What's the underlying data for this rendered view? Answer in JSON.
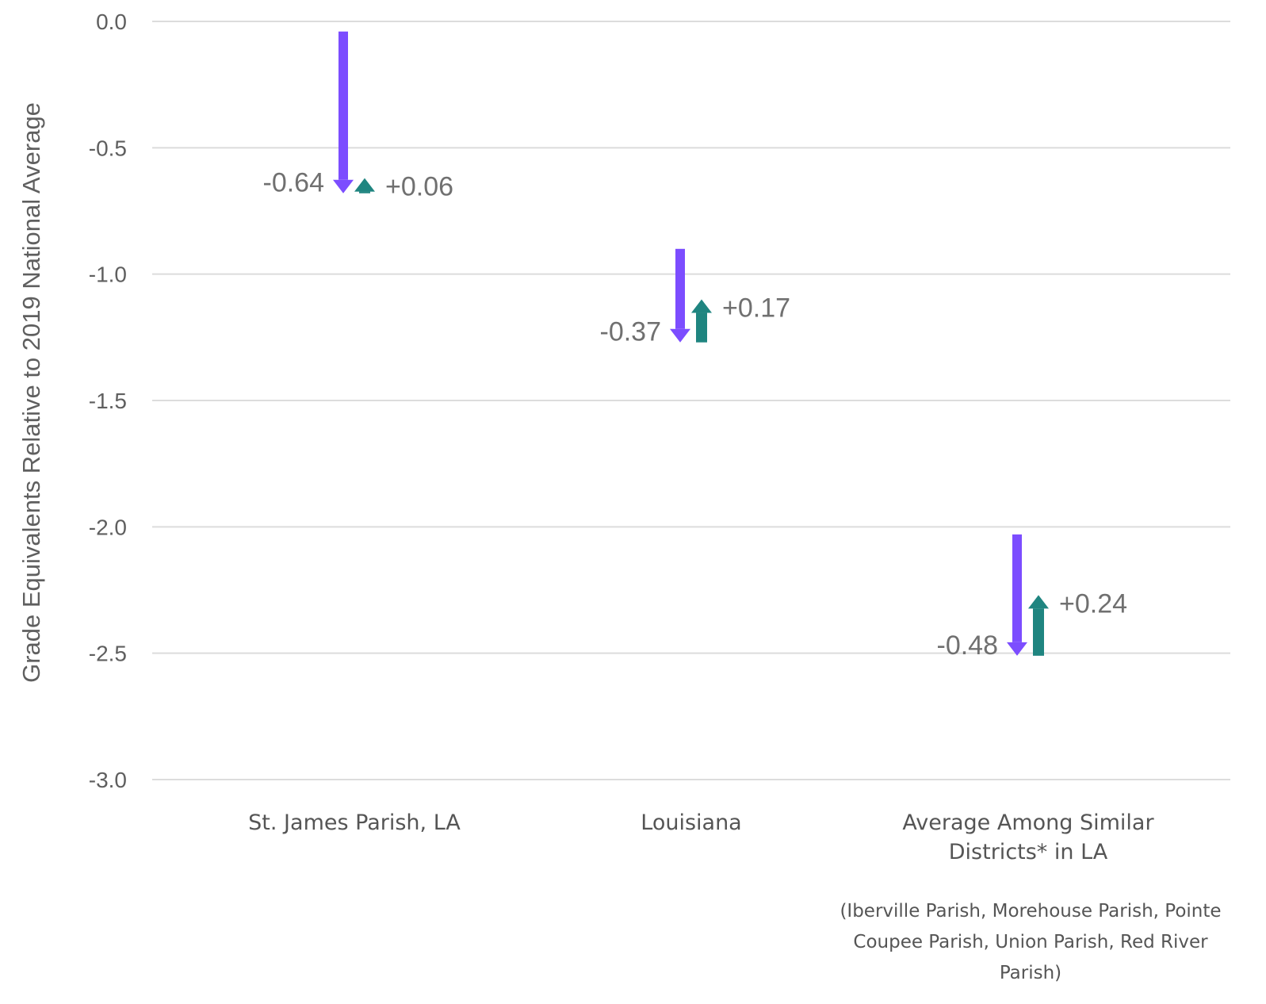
{
  "chart_data": {
    "type": "arrow",
    "ylabel": "Grade Equivalents Relative to 2019 National Average",
    "ylim": [
      -3.0,
      0.0
    ],
    "yticks": [
      "0.0",
      "-0.5",
      "-1.0",
      "-1.5",
      "-2.0",
      "-2.5",
      "-3.0"
    ],
    "grid": true,
    "colors": {
      "decline": "#7C4DFF",
      "recovery": "#1F8580"
    },
    "categories": [
      {
        "label_lines": [
          "St. James Parish, LA"
        ],
        "note_lines": [],
        "start": -0.04,
        "decline": -0.64,
        "decline_label": "-0.64",
        "recovery": 0.06,
        "recovery_label": "+0.06"
      },
      {
        "label_lines": [
          "Louisiana"
        ],
        "note_lines": [],
        "start": -0.9,
        "decline": -0.37,
        "decline_label": "-0.37",
        "recovery": 0.17,
        "recovery_label": "+0.17"
      },
      {
        "label_lines": [
          "Average Among Similar",
          "Districts* in LA"
        ],
        "note_lines": [
          "(Iberville Parish, Morehouse Parish, Pointe",
          "Coupee Parish, Union Parish, Red River",
          "Parish)"
        ],
        "start": -2.03,
        "decline": -0.48,
        "decline_label": "-0.48",
        "recovery": 0.24,
        "recovery_label": "+0.24"
      }
    ]
  }
}
